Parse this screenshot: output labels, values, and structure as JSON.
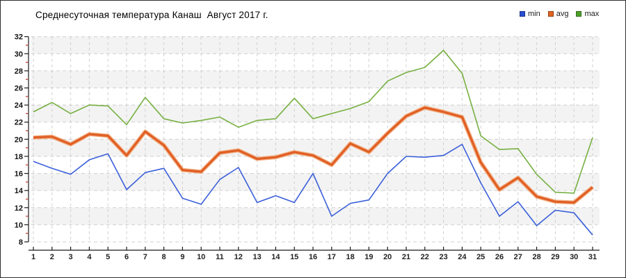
{
  "window": {
    "background": "#ffffff",
    "border_color": "#2e2e2e"
  },
  "chart_data": {
    "type": "line",
    "title": "Среднесуточная температура Канаш  Август 2017 г.",
    "xlabel": "",
    "ylabel": "",
    "x": [
      1,
      2,
      3,
      4,
      5,
      6,
      7,
      8,
      9,
      10,
      11,
      12,
      13,
      14,
      15,
      16,
      17,
      18,
      19,
      20,
      21,
      22,
      23,
      24,
      25,
      26,
      27,
      28,
      29,
      30,
      31
    ],
    "ylim": [
      8,
      32
    ],
    "ytick_step": 2,
    "grid": true,
    "legend_position": "top-right",
    "series": [
      {
        "name": "min",
        "color": "#3a5fd9",
        "legend_color": "#2a4ed2",
        "width": 1.6,
        "values": [
          17.4,
          16.6,
          15.9,
          17.6,
          18.3,
          14.1,
          16.1,
          16.6,
          13.1,
          12.4,
          15.3,
          16.7,
          12.6,
          13.4,
          12.6,
          16.0,
          11.0,
          12.5,
          12.9,
          16.0,
          18.0,
          17.9,
          18.1,
          19.4,
          14.9,
          11.0,
          12.7,
          9.9,
          11.7,
          11.4,
          8.8
        ]
      },
      {
        "name": "avg",
        "color": "#e05f25",
        "halo_color": "#f2a36e",
        "legend_color": "#e2641f",
        "width": 3.2,
        "values": [
          20.2,
          20.3,
          19.4,
          20.6,
          20.4,
          18.1,
          20.9,
          19.3,
          16.4,
          16.2,
          18.4,
          18.7,
          17.7,
          17.9,
          18.5,
          18.1,
          17.0,
          19.5,
          18.5,
          20.7,
          22.7,
          23.7,
          23.2,
          22.6,
          17.3,
          14.1,
          15.5,
          13.3,
          12.7,
          12.6,
          14.4
        ]
      },
      {
        "name": "max",
        "color": "#76b041",
        "legend_color": "#4ea029",
        "width": 1.6,
        "values": [
          23.2,
          24.3,
          23.0,
          24.0,
          23.9,
          21.7,
          24.9,
          22.4,
          21.9,
          22.2,
          22.6,
          21.4,
          22.2,
          22.4,
          24.8,
          22.4,
          23.0,
          23.6,
          24.4,
          26.8,
          27.8,
          28.4,
          30.4,
          27.7,
          20.4,
          18.8,
          18.9,
          15.9,
          13.8,
          13.7,
          20.2
        ]
      }
    ],
    "styles": {
      "band_gray": "#f3f3f3",
      "band_white": "#ffffff",
      "grid_color": "#cfcfcf",
      "axis_color": "#1a1a1a",
      "minor_tick_color": "#c42b1c",
      "y_label_color": "#111111",
      "x_label_color": "#222222"
    }
  }
}
